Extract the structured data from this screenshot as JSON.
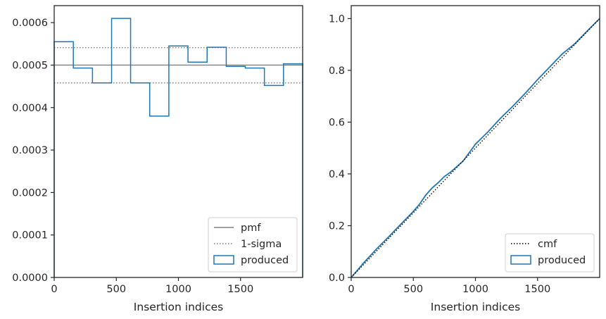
{
  "chart_data": [
    {
      "type": "histogram",
      "xlabel": "Insertion indices",
      "ylabel": "",
      "xlim": [
        0,
        2000
      ],
      "ylim": [
        0,
        0.00064
      ],
      "xticks": [
        0,
        500,
        1000,
        1500
      ],
      "xtick_labels": [
        "0",
        "500",
        "1000",
        "1500"
      ],
      "yticks": [
        0,
        0.0001,
        0.0002,
        0.0003,
        0.0004,
        0.0005,
        0.0006
      ],
      "ytick_labels": [
        "0.0000",
        "0.0001",
        "0.0002",
        "0.0003",
        "0.0004",
        "0.0005",
        "0.0006"
      ],
      "bin_edges": [
        0,
        154,
        308,
        462,
        615,
        769,
        923,
        1077,
        1231,
        1385,
        1538,
        1692,
        1846,
        2000
      ],
      "produced": [
        0.000555,
        0.000493,
        0.000458,
        0.00061,
        0.000458,
        0.00038,
        0.000545,
        0.000507,
        0.000542,
        0.000497,
        0.000493,
        0.000452,
        0.000503
      ],
      "pmf": 0.0005,
      "sigma_lower": 0.000458,
      "sigma_upper": 0.000541,
      "legend": {
        "position": "lower right",
        "entries": [
          {
            "label": "pmf",
            "style": "solid",
            "color": "#808080"
          },
          {
            "label": "1-sigma",
            "style": "dotted",
            "color": "#808080"
          },
          {
            "label": "produced",
            "style": "step",
            "color": "#1f77b4"
          }
        ]
      }
    },
    {
      "type": "line",
      "xlabel": "Insertion indices",
      "ylabel": "",
      "xlim": [
        0,
        2000
      ],
      "ylim": [
        0,
        1.05
      ],
      "xticks": [
        0,
        500,
        1000,
        1500
      ],
      "xtick_labels": [
        "0",
        "500",
        "1000",
        "1500"
      ],
      "yticks": [
        0,
        0.2,
        0.4,
        0.6,
        0.8,
        1.0
      ],
      "ytick_labels": [
        "0.0",
        "0.2",
        "0.4",
        "0.6",
        "0.8",
        "1.0"
      ],
      "cmf": {
        "x": [
          0,
          2000
        ],
        "y": [
          0,
          1.0
        ]
      },
      "produced": {
        "x": [
          0,
          100,
          200,
          300,
          400,
          500,
          550,
          600,
          650,
          700,
          750,
          800,
          900,
          1000,
          1100,
          1200,
          1300,
          1400,
          1500,
          1600,
          1700,
          1800,
          1900,
          2000
        ],
        "y": [
          0,
          0.056,
          0.108,
          0.156,
          0.206,
          0.255,
          0.283,
          0.318,
          0.345,
          0.366,
          0.39,
          0.407,
          0.449,
          0.515,
          0.562,
          0.614,
          0.661,
          0.711,
          0.764,
          0.814,
          0.864,
          0.903,
          0.952,
          1.0
        ]
      },
      "legend": {
        "position": "lower right",
        "entries": [
          {
            "label": "cmf",
            "style": "dotted",
            "color": "#000000"
          },
          {
            "label": "produced",
            "style": "step",
            "color": "#1f77b4"
          }
        ]
      }
    }
  ]
}
